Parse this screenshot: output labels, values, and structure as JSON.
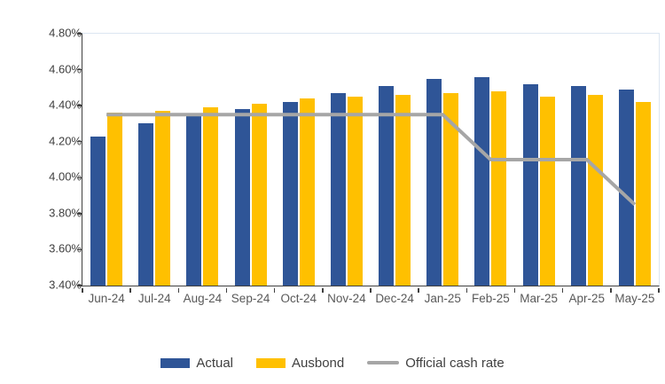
{
  "chart_data": {
    "type": "bar",
    "title": "",
    "xlabel": "",
    "ylabel": "",
    "categories": [
      "Jun-24",
      "Jul-24",
      "Aug-24",
      "Sep-24",
      "Oct-24",
      "Nov-24",
      "Dec-24",
      "Jan-25",
      "Feb-25",
      "Mar-25",
      "Apr-25",
      "May-25"
    ],
    "series": [
      {
        "name": "Actual",
        "type": "bar",
        "color": "#2F5597",
        "values": [
          4.23,
          4.3,
          4.34,
          4.38,
          4.42,
          4.47,
          4.51,
          4.55,
          4.56,
          4.52,
          4.51,
          4.49
        ]
      },
      {
        "name": "Ausbond",
        "type": "bar",
        "color": "#FFC000",
        "values": [
          4.36,
          4.37,
          4.39,
          4.41,
          4.44,
          4.45,
          4.46,
          4.47,
          4.48,
          4.45,
          4.46,
          4.42
        ]
      },
      {
        "name": "Official cash rate",
        "type": "line",
        "color": "#A6A6A6",
        "values": [
          4.35,
          4.35,
          4.35,
          4.35,
          4.35,
          4.35,
          4.35,
          4.35,
          4.1,
          4.1,
          4.1,
          3.85
        ]
      }
    ],
    "ylim": [
      3.4,
      4.8
    ],
    "ytick_step": 0.2,
    "ytick_labels": [
      "4.80%",
      "4.60%",
      "4.40%",
      "4.20%",
      "4.00%",
      "3.80%",
      "3.60%",
      "3.40%"
    ],
    "value_format": "percent_2dp",
    "grid": false,
    "legend_position": "bottom"
  },
  "colors": {
    "actual_bar": "#2F5597",
    "ausbond_bar": "#FFC000",
    "cash_rate_line": "#A6A6A6",
    "axis_line": "#404040",
    "plot_border": "#DCE6F1",
    "ytick_text": "#3F3F3F",
    "xtick_text": "#595959",
    "legend_text": "#404040"
  }
}
